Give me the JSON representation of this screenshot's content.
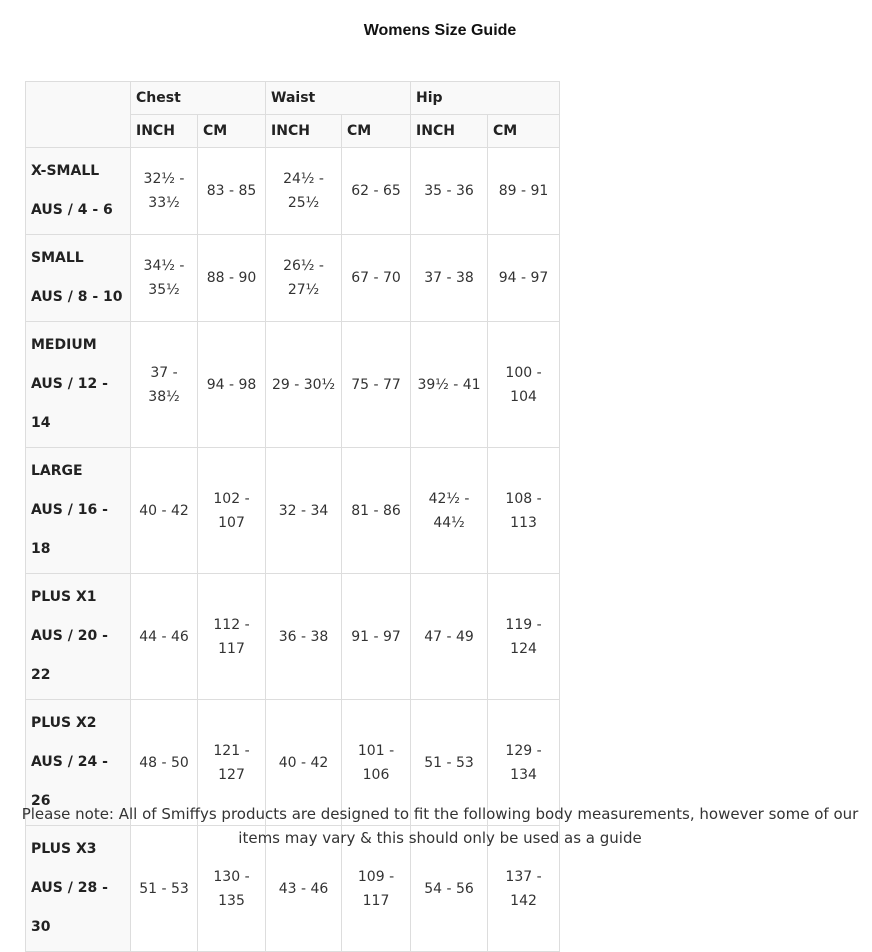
{
  "title": "Womens Size Guide",
  "table": {
    "groups": [
      "Chest",
      "Waist",
      "Hip"
    ],
    "units": [
      "INCH",
      "CM",
      "INCH",
      "CM",
      "INCH",
      "CM"
    ],
    "rows": [
      {
        "size": "X-SMALL",
        "aus": "AUS / 4 - 6",
        "values": [
          "32½ - 33½",
          "83 - 85",
          "24½ - 25½",
          "62 - 65",
          "35 - 36",
          "89 - 91"
        ]
      },
      {
        "size": "SMALL",
        "aus": "AUS / 8 - 10",
        "values": [
          "34½ - 35½",
          "88 - 90",
          "26½ - 27½",
          "67 - 70",
          "37 - 38",
          "94 - 97"
        ]
      },
      {
        "size": "MEDIUM",
        "aus": "AUS / 12 - 14",
        "values": [
          "37 - 38½",
          "94 - 98",
          "29 - 30½",
          "75 - 77",
          "39½ - 41",
          "100 - 104"
        ]
      },
      {
        "size": "LARGE",
        "aus": "AUS / 16 - 18",
        "values": [
          "40 - 42",
          "102 - 107",
          "32 - 34",
          "81 - 86",
          "42½ - 44½",
          "108 - 113"
        ]
      },
      {
        "size": "PLUS X1",
        "aus": "AUS / 20 - 22",
        "values": [
          "44 - 46",
          "112 - 117",
          "36 - 38",
          "91 - 97",
          "47 - 49",
          "119 - 124"
        ]
      },
      {
        "size": "PLUS X2",
        "aus": "AUS / 24 - 26",
        "values": [
          "48 - 50",
          "121 - 127",
          "40 - 42",
          "101 - 106",
          "51 - 53",
          "129 - 134"
        ]
      },
      {
        "size": "PLUS X3",
        "aus": "AUS / 28 - 30",
        "values": [
          "51 - 53",
          "130 - 135",
          "43 - 46",
          "109 - 117",
          "54 - 56",
          "137 - 142"
        ]
      }
    ]
  },
  "note": "Please note: All of Smiffys products are designed to fit the following body measurements, however some of our items may vary & this should only be used as a guide"
}
